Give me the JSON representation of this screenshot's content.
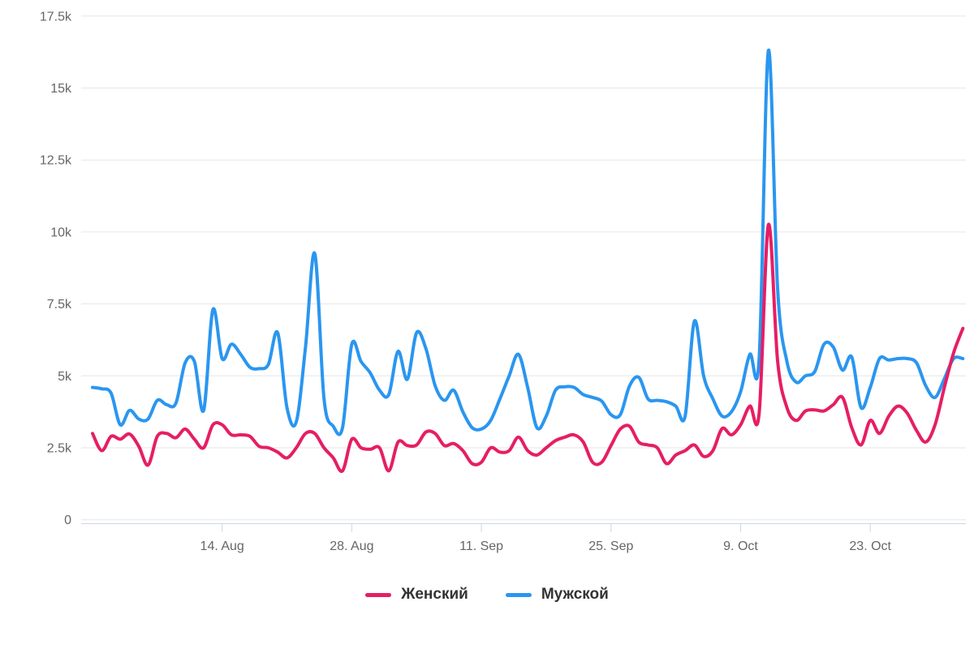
{
  "chart_data": {
    "type": "line",
    "style": "smooth-spline",
    "title": "",
    "points_per_series": 95,
    "x_axis": {
      "tick_labels": [
        "14. Aug",
        "28. Aug",
        "11. Sep",
        "25. Sep",
        "9. Oct",
        "23. Oct"
      ],
      "tick_point_indices": [
        14,
        28,
        42,
        56,
        70,
        84
      ]
    },
    "y_axis": {
      "tick_labels": [
        "0",
        "2.5k",
        "5k",
        "7.5k",
        "10k",
        "12.5k",
        "15k",
        "17.5k"
      ],
      "tick_values": [
        0,
        2500,
        5000,
        7500,
        10000,
        12500,
        15000,
        17500
      ],
      "range": [
        0,
        17500
      ]
    },
    "grid": "horizontal",
    "legend_position": "bottom",
    "series": [
      {
        "name": "Женский",
        "color": "#e61e64",
        "values": [
          3000,
          2400,
          2900,
          2800,
          2980,
          2550,
          1900,
          2900,
          3000,
          2850,
          3150,
          2800,
          2500,
          3300,
          3300,
          2950,
          2950,
          2900,
          2550,
          2500,
          2350,
          2150,
          2500,
          3000,
          3000,
          2500,
          2150,
          1700,
          2800,
          2500,
          2450,
          2500,
          1700,
          2700,
          2580,
          2600,
          3050,
          3000,
          2580,
          2650,
          2400,
          1950,
          2000,
          2500,
          2350,
          2400,
          2870,
          2400,
          2250,
          2500,
          2750,
          2870,
          2950,
          2700,
          2000,
          2000,
          2580,
          3150,
          3250,
          2700,
          2600,
          2500,
          1950,
          2250,
          2400,
          2600,
          2200,
          2400,
          3170,
          2950,
          3300,
          3950,
          3700,
          10250,
          5500,
          3900,
          3450,
          3780,
          3820,
          3780,
          4000,
          4250,
          3200,
          2600,
          3450,
          3000,
          3600,
          3950,
          3700,
          3100,
          2700,
          3300,
          4600,
          5800,
          6650
        ]
      },
      {
        "name": "Мужской",
        "color": "#2a96f0",
        "values": [
          4600,
          4550,
          4400,
          3300,
          3800,
          3500,
          3500,
          4150,
          4000,
          4050,
          5450,
          5500,
          3800,
          7300,
          5600,
          6100,
          5750,
          5300,
          5250,
          5400,
          6500,
          3900,
          3400,
          6000,
          9250,
          4200,
          3250,
          3200,
          6100,
          5500,
          5100,
          4500,
          4350,
          5850,
          4880,
          6500,
          5950,
          4660,
          4150,
          4500,
          3750,
          3200,
          3150,
          3450,
          4200,
          5000,
          5750,
          4600,
          3200,
          3600,
          4500,
          4620,
          4600,
          4350,
          4250,
          4120,
          3650,
          3650,
          4650,
          4950,
          4200,
          4150,
          4100,
          3950,
          3600,
          6900,
          5000,
          4200,
          3600,
          3750,
          4450,
          5750,
          5600,
          16300,
          8000,
          5500,
          4780,
          5000,
          5150,
          6100,
          6000,
          5200,
          5650,
          3900,
          4600,
          5600,
          5550,
          5600,
          5600,
          5450,
          4650,
          4250,
          4900,
          5600,
          5600
        ]
      }
    ]
  },
  "legend": {
    "items": [
      {
        "label": "Женский",
        "color": "#e61e64"
      },
      {
        "label": "Мужской",
        "color": "#2a96f0"
      }
    ]
  },
  "colors": {
    "grid_line": "#e6e6e6",
    "axis_line": "#ccd6eb",
    "tick_mark": "#ccd6eb",
    "axis_label": "#666666",
    "legend_text": "#333333",
    "background": "#ffffff"
  }
}
